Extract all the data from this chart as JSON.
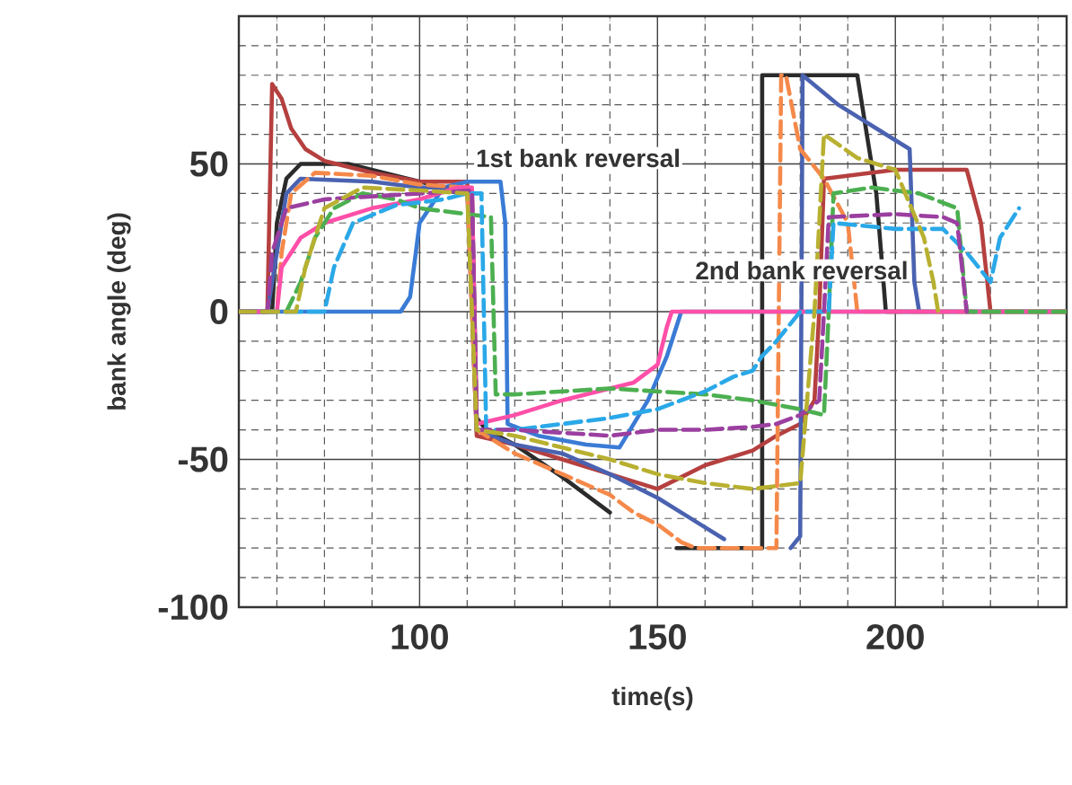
{
  "chart_data": {
    "type": "line",
    "xlabel": "time(s)",
    "ylabel": "bank angle (deg)",
    "xlim": [
      62,
      236
    ],
    "ylim": [
      -100,
      100
    ],
    "xticks": [
      {
        "value": 70,
        "label": null
      },
      {
        "value": 80,
        "label": null
      },
      {
        "value": 90,
        "label": null
      },
      100,
      {
        "value": 110,
        "label": null
      },
      {
        "value": 120,
        "label": null
      },
      {
        "value": 130,
        "label": null
      },
      {
        "value": 140,
        "label": null
      },
      150,
      {
        "value": 160,
        "label": null
      },
      {
        "value": 170,
        "label": null
      },
      {
        "value": 180,
        "label": null
      },
      {
        "value": 190,
        "label": null
      },
      200,
      {
        "value": 210,
        "label": null
      },
      {
        "value": 220,
        "label": null
      },
      {
        "value": 230,
        "label": null
      }
    ],
    "yticks": [
      -100,
      {
        "value": -90,
        "label": null
      },
      {
        "value": -80,
        "label": null
      },
      {
        "value": -70,
        "label": null
      },
      {
        "value": -60,
        "label": null
      },
      -50,
      {
        "value": -40,
        "label": null
      },
      {
        "value": -30,
        "label": null
      },
      {
        "value": -20,
        "label": null
      },
      {
        "value": -10,
        "label": null
      },
      0,
      {
        "value": 10,
        "label": null
      },
      {
        "value": 20,
        "label": null
      },
      {
        "value": 30,
        "label": null
      },
      {
        "value": 40,
        "label": null
      },
      50,
      {
        "value": 60,
        "label": null
      },
      {
        "value": 70,
        "label": null
      },
      {
        "value": 80,
        "label": null
      },
      {
        "value": 90,
        "label": null
      }
    ],
    "grid": true,
    "marker": "none",
    "annotations": [
      "1st bank reversal",
      "2nd bank reversal"
    ],
    "series": [
      {
        "color": "#2b2b2b",
        "line_style": "solid",
        "x": [
          62,
          69,
          70,
          72,
          75,
          85,
          95,
          105,
          111,
          112,
          114,
          120,
          130,
          140,
          147,
          154,
          172,
          172,
          192,
          196,
          198,
          236
        ],
        "values": [
          0,
          0,
          30,
          45,
          50,
          50,
          46,
          42,
          41,
          -36,
          -40,
          -45,
          -56,
          -68,
          null,
          -80,
          -80,
          80,
          80,
          40,
          0,
          0
        ]
      },
      {
        "color": "#b5403f",
        "line_style": "solid",
        "x": [
          62,
          68,
          69,
          71,
          73,
          76,
          80,
          90,
          100,
          110,
          112,
          120,
          130,
          140,
          150,
          160,
          170,
          175,
          180,
          183,
          184,
          185,
          200,
          215,
          218,
          220,
          236
        ],
        "values": [
          0,
          0,
          77,
          72,
          62,
          55,
          51,
          47,
          44,
          44,
          -42,
          -45,
          -50,
          -55,
          -60,
          -52,
          -47,
          -42,
          -38,
          -30,
          0,
          45,
          48,
          48,
          30,
          0,
          0
        ]
      },
      {
        "color": "#3a7bd5",
        "line_style": "solid",
        "x": [
          62,
          96,
          98,
          100,
          105,
          110,
          117,
          118,
          118.5,
          125,
          135,
          142,
          148,
          152,
          155,
          200,
          236
        ],
        "values": [
          0,
          0,
          5,
          30,
          42,
          44,
          44,
          30,
          -38,
          -42,
          -45,
          -46,
          -30,
          -15,
          0,
          0,
          0
        ]
      },
      {
        "color": "#4a62b0",
        "line_style": "solid",
        "x": [
          62,
          68,
          70,
          72,
          75,
          90,
          100,
          110,
          112,
          120,
          130,
          140,
          150,
          160,
          164,
          170,
          178,
          180,
          180.5,
          188,
          196,
          203,
          204,
          205
        ],
        "values": [
          0,
          0,
          20,
          40,
          45,
          44,
          42,
          42,
          -40,
          -45,
          -48,
          -55,
          -63,
          -73,
          -77,
          null,
          -80,
          -76,
          80,
          70,
          62,
          55,
          10,
          0
        ]
      },
      {
        "color": "#f5894a",
        "line_style": "dashed",
        "x": [
          62,
          70,
          71,
          73,
          78,
          90,
          100,
          110,
          112,
          120,
          130,
          140,
          145,
          150,
          155,
          158,
          175,
          176,
          177,
          180,
          185,
          190,
          192,
          236
        ],
        "values": [
          0,
          0,
          20,
          40,
          47,
          46,
          43,
          42,
          -40,
          -48,
          -55,
          -62,
          -68,
          -72,
          -78,
          -80,
          -80,
          80,
          80,
          55,
          45,
          30,
          0,
          0
        ]
      },
      {
        "color": "#ff4fa8",
        "line_style": "solid",
        "x": [
          62,
          70,
          71,
          73,
          75,
          80,
          90,
          100,
          108,
          111,
          112,
          120,
          130,
          140,
          145,
          150,
          152,
          153,
          236
        ],
        "values": [
          0,
          0,
          15,
          20,
          25,
          30,
          35,
          38,
          42,
          42,
          -38,
          -35,
          -30,
          -26,
          -24,
          -18,
          -5,
          0,
          0
        ]
      },
      {
        "color": "#4caf50",
        "line_style": "dashed",
        "x": [
          62,
          72,
          75,
          78,
          82,
          88,
          95,
          100,
          110,
          115,
          116,
          120,
          130,
          140,
          160,
          170,
          180,
          185,
          186,
          187,
          195,
          205,
          213,
          215,
          236
        ],
        "values": [
          0,
          0,
          10,
          25,
          35,
          40,
          38,
          35,
          33,
          32,
          -28,
          -28,
          -27,
          -26,
          -28,
          -30,
          -33,
          -35,
          0,
          40,
          42,
          40,
          35,
          0,
          0
        ]
      },
      {
        "color": "#2aa8e8",
        "line_style": "dashed",
        "x": [
          62,
          80,
          82,
          86,
          95,
          105,
          110,
          113,
          114,
          120,
          130,
          140,
          150,
          160,
          166,
          170,
          172,
          175,
          180,
          186,
          187,
          200,
          210,
          215,
          220,
          222,
          226
        ],
        "values": [
          0,
          0,
          15,
          30,
          36,
          38,
          40,
          40,
          -40,
          -40,
          -38,
          -36,
          -33,
          -27,
          -22,
          -20,
          -15,
          -10,
          0,
          0,
          30,
          28,
          28,
          20,
          10,
          25,
          35
        ]
      },
      {
        "color": "#9b3fa0",
        "line_style": "dashed",
        "x": [
          62,
          68,
          69,
          72,
          80,
          100,
          111,
          112,
          120,
          130,
          140,
          150,
          160,
          170,
          175,
          180,
          184,
          185,
          186,
          200,
          210,
          213,
          215
        ],
        "values": [
          0,
          0,
          20,
          35,
          38,
          40,
          41,
          -40,
          -40,
          -41,
          -42,
          -40,
          -40,
          -39,
          -38,
          -35,
          -30,
          0,
          32,
          33,
          32,
          30,
          0
        ]
      },
      {
        "color": "#b8b030",
        "line_style": "dashed",
        "x": [
          62,
          74,
          76,
          80,
          88,
          100,
          110,
          112,
          120,
          130,
          140,
          150,
          160,
          170,
          180,
          183,
          185,
          192,
          200,
          206,
          208,
          209
        ],
        "values": [
          0,
          0,
          15,
          35,
          42,
          41,
          40,
          -40,
          -42,
          -46,
          -50,
          -55,
          -58,
          -60,
          -58,
          0,
          60,
          52,
          48,
          25,
          10,
          0
        ]
      }
    ]
  }
}
